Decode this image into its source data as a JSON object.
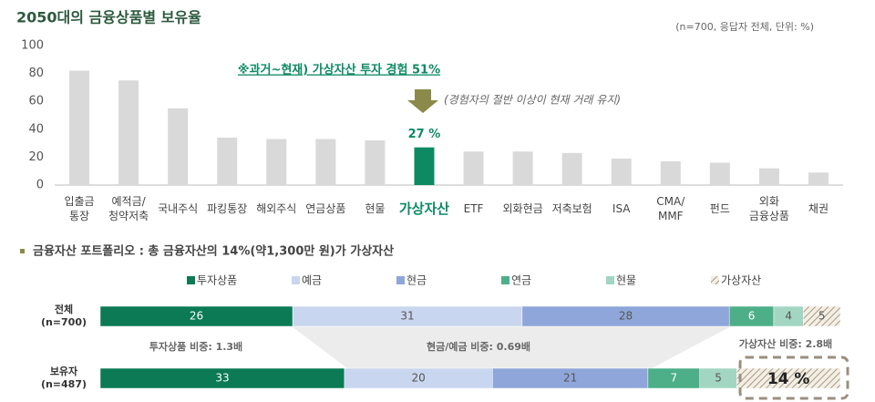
{
  "chart_data": [
    {
      "type": "bar",
      "title": "2050대의 금융상품별 보유율",
      "note": "(n=700, 응답자 전체, 단위: %)",
      "categories": [
        "입출금\n통장",
        "예적금/\n청약저축",
        "국내주식",
        "파킹통장",
        "해외주식",
        "연금상품",
        "현물",
        "가상자산",
        "ETF",
        "외화현금",
        "저축보험",
        "ISA",
        "CMA/\nMMF",
        "펀드",
        "외화\n금융상품",
        "채권"
      ],
      "values": [
        82,
        75,
        55,
        34,
        33,
        33,
        32,
        27,
        24,
        24,
        23,
        19,
        17,
        16,
        12,
        9
      ],
      "value_labels": [
        null,
        null,
        null,
        null,
        null,
        null,
        null,
        "27 %",
        null,
        null,
        null,
        null,
        null,
        null,
        null,
        null
      ],
      "colors": [
        "#d9d9d9",
        "#d9d9d9",
        "#d9d9d9",
        "#d9d9d9",
        "#d9d9d9",
        "#d9d9d9",
        "#d9d9d9",
        "#0e8a63",
        "#d9d9d9",
        "#d9d9d9",
        "#d9d9d9",
        "#d9d9d9",
        "#d9d9d9",
        "#d9d9d9",
        "#d9d9d9",
        "#d9d9d9"
      ],
      "ylim": [
        0,
        100
      ],
      "yticks": [
        0,
        20,
        40,
        60,
        80,
        100
      ],
      "annotations": [
        "※과거~현재) 가상자산 투자 경험 51%",
        "(경험자의 절반 이상이 현재 거래 유지)"
      ]
    },
    {
      "type": "stacked-bar-horizontal",
      "title": "금융자산 포트폴리오 : 총 금융자산의 14%(약1,300만 원)가 가상자산",
      "categories": [
        "전체\n(n=700)",
        "보유자\n(n=487)"
      ],
      "series": [
        {
          "name": "투자상품",
          "color": "#0b7a55",
          "values": [
            26,
            33
          ]
        },
        {
          "name": "예금",
          "color": "#c9d6ef",
          "values": [
            31,
            20
          ]
        },
        {
          "name": "현금",
          "color": "#8ea6d9",
          "values": [
            28,
            21
          ]
        },
        {
          "name": "연금",
          "color": "#4caf88",
          "values": [
            6,
            7
          ]
        },
        {
          "name": "현물",
          "color": "#a3d6c2",
          "values": [
            4,
            5
          ]
        },
        {
          "name": "가상자산",
          "color": "#a89a80",
          "pattern": "hatch",
          "values": [
            5,
            14
          ],
          "value_labels": [
            "5",
            "14 %"
          ]
        }
      ],
      "xlim": [
        0,
        100
      ],
      "legend": "top",
      "annotations": [
        "투자상품 비중: 1.3배",
        "현금/예금 비중: 0.69배",
        "가상자산 비중: 2.8배"
      ]
    }
  ]
}
